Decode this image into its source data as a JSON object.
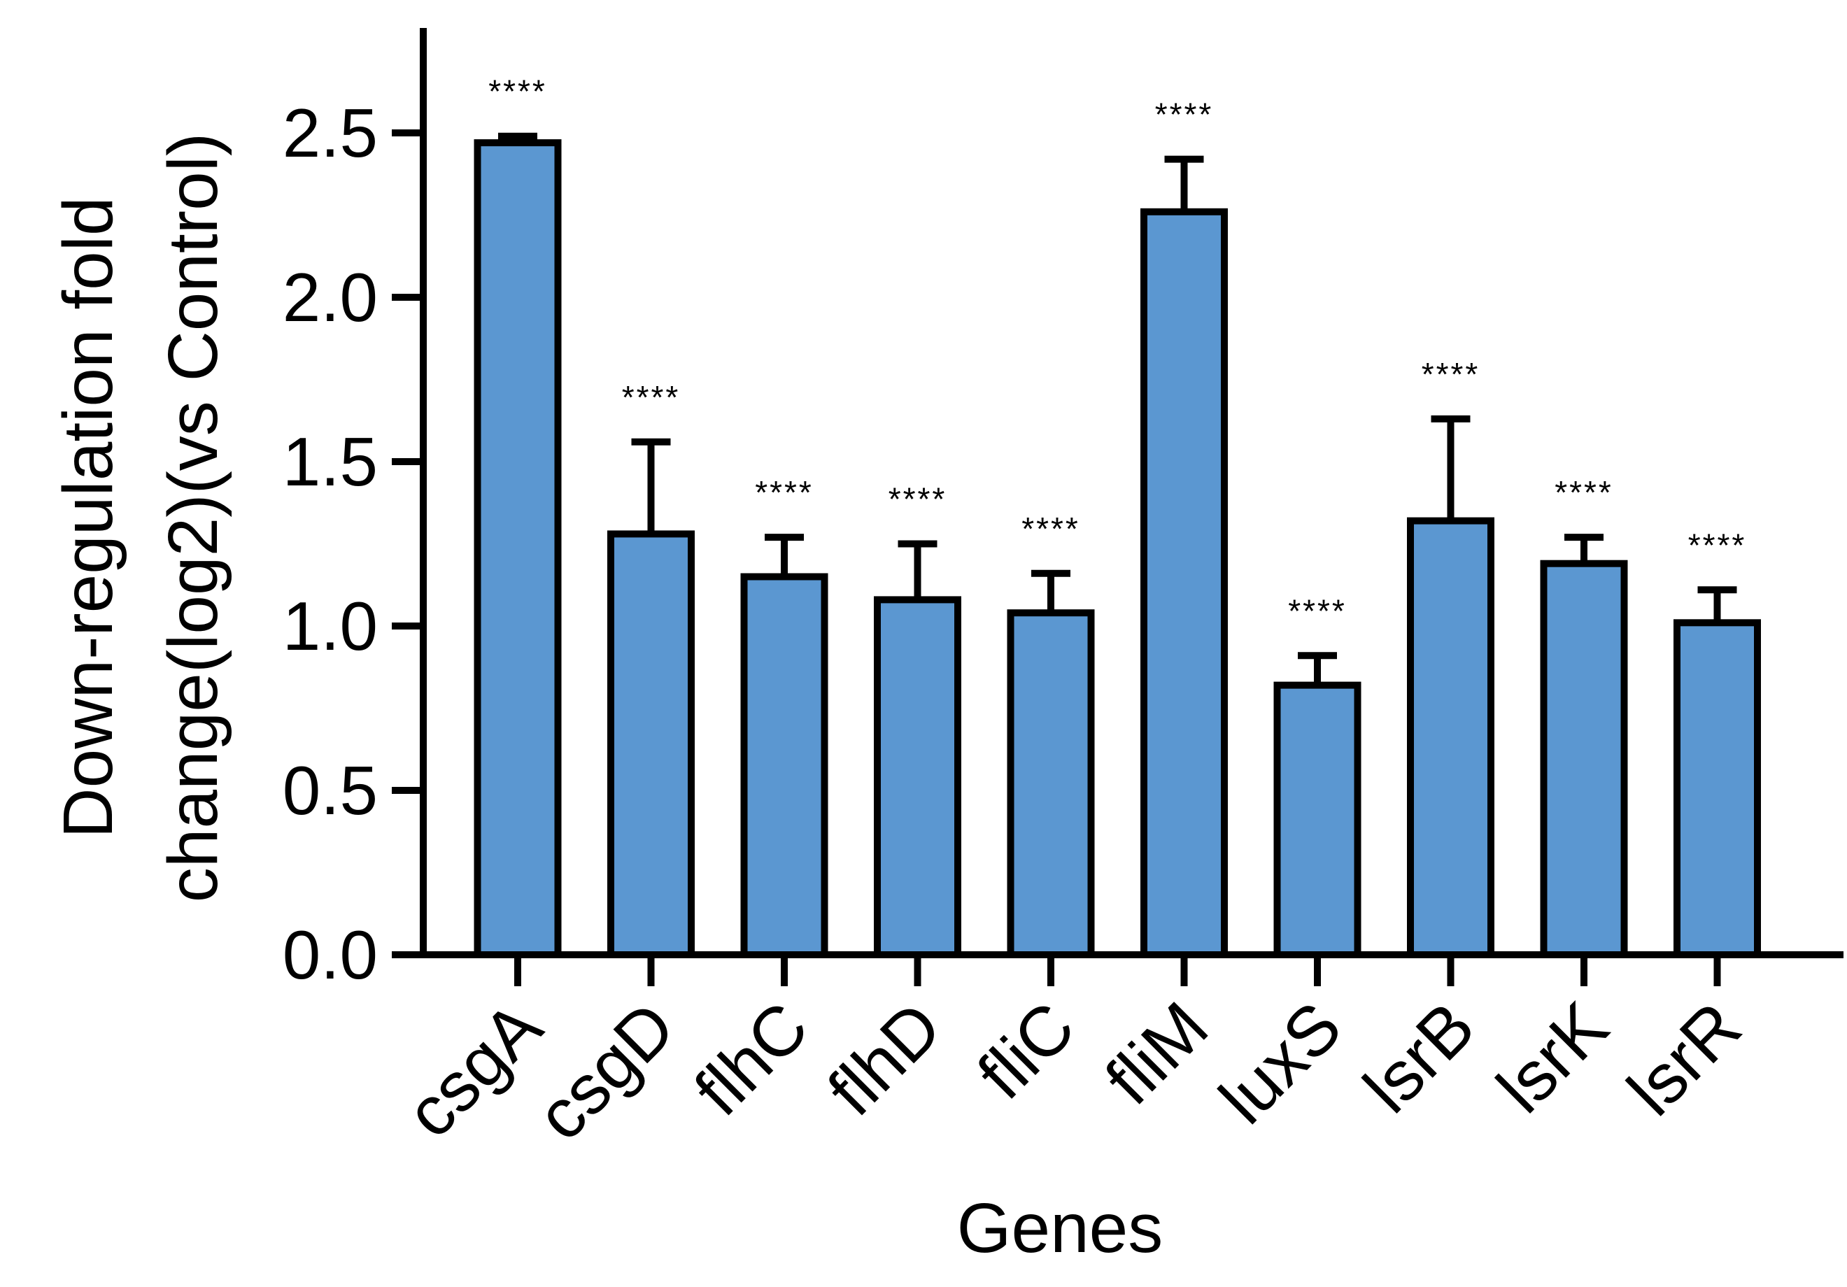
{
  "chart_data": {
    "type": "bar",
    "title": "",
    "xlabel": "Genes",
    "ylabel_line1": "Down-regulation fold",
    "ylabel_line2": "change(log2)(vs Control)",
    "ylim": [
      0,
      2.8
    ],
    "yticks": [
      "0.0",
      "0.5",
      "1.0",
      "1.5",
      "2.0",
      "2.5"
    ],
    "ytick_values": [
      0,
      0.5,
      1.0,
      1.5,
      2.0,
      2.5
    ],
    "categories": [
      "csgA",
      "csgD",
      "flhC",
      "flhD",
      "fliC",
      "fliM",
      "luxS",
      "lsrB",
      "lsrK",
      "lsrR"
    ],
    "values": [
      2.47,
      1.28,
      1.15,
      1.08,
      1.04,
      2.26,
      0.82,
      1.32,
      1.19,
      1.01
    ],
    "errors": [
      0.02,
      0.28,
      0.12,
      0.17,
      0.12,
      0.16,
      0.09,
      0.31,
      0.08,
      0.1
    ],
    "significance": [
      "****",
      "****",
      "****",
      "****",
      "****",
      "****",
      "****",
      "****",
      "****",
      "****"
    ],
    "bar_color": "#5b97d1",
    "grid": false,
    "legend": "none"
  }
}
